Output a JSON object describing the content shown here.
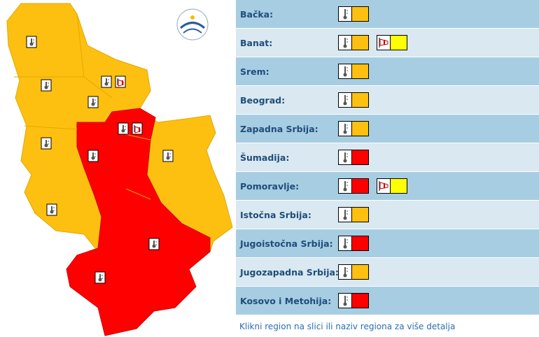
{
  "regions": [
    {
      "name": "Bačka:",
      "warnings": [
        {
          "icon": "thermometer",
          "color": "#fdc010"
        }
      ]
    },
    {
      "name": "Banat:",
      "warnings": [
        {
          "icon": "thermometer",
          "color": "#fdc010"
        },
        {
          "icon": "wind",
          "color": "#ffff00"
        }
      ]
    },
    {
      "name": "Srem:",
      "warnings": [
        {
          "icon": "thermometer",
          "color": "#fdc010"
        }
      ]
    },
    {
      "name": "Beograd:",
      "warnings": [
        {
          "icon": "thermometer",
          "color": "#fdc010"
        }
      ]
    },
    {
      "name": "Zapadna Srbija:",
      "warnings": [
        {
          "icon": "thermometer",
          "color": "#fdc010"
        }
      ]
    },
    {
      "name": "Šumadija:",
      "warnings": [
        {
          "icon": "thermometer",
          "color": "#ff0000"
        }
      ]
    },
    {
      "name": "Pomoravlje:",
      "warnings": [
        {
          "icon": "thermometer",
          "color": "#ff0000"
        },
        {
          "icon": "wind",
          "color": "#ffff00"
        }
      ]
    },
    {
      "name": "Istočna Srbija:",
      "warnings": [
        {
          "icon": "thermometer",
          "color": "#fdc010"
        }
      ]
    },
    {
      "name": "Jugoistočna Srbija:",
      "warnings": [
        {
          "icon": "thermometer",
          "color": "#ff0000"
        }
      ]
    },
    {
      "name": "Jugozapadna Srbija:",
      "warnings": [
        {
          "icon": "thermometer",
          "color": "#fdc010"
        }
      ]
    },
    {
      "name": "Kosovo i Metohija:",
      "warnings": [
        {
          "icon": "thermometer",
          "color": "#ff0000"
        }
      ]
    }
  ],
  "footer": "Klikni region na slici ili naziv regiona za više detalja"
}
